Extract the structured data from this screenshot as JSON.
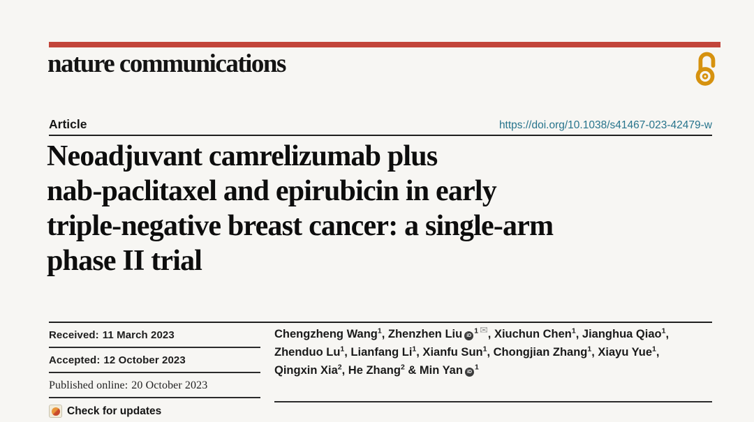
{
  "journal": {
    "name": "nature communications"
  },
  "header": {
    "article_label": "Article",
    "doi": "https://doi.org/10.1038/s41467-023-42479-w"
  },
  "title": {
    "lines": [
      "Neoadjuvant camrelizumab plus",
      "nab-paclitaxel and epirubicin in early",
      "triple-negative breast cancer: a single-arm",
      "phase II trial"
    ]
  },
  "dates": {
    "received": {
      "label": "Received:",
      "value": "11 March 2023"
    },
    "accepted": {
      "label": "Accepted:",
      "value": "12 October 2023"
    },
    "published": {
      "label": "Published online:",
      "value": "20 October 2023"
    }
  },
  "check_for_updates": {
    "label": "Check for updates"
  },
  "authors": {
    "lines": [
      [
        {
          "t": "Chengzheng Wang"
        },
        {
          "s": "1"
        },
        {
          "t": ", Zhenzhen Liu"
        },
        {
          "i": "orcid"
        },
        {
          "s": "1"
        },
        {
          "i": "mail"
        },
        {
          "t": ", Xiuchun Chen"
        },
        {
          "s": "1"
        },
        {
          "t": ", Jianghua Qiao"
        },
        {
          "s": "1"
        },
        {
          "t": ","
        }
      ],
      [
        {
          "t": "Zhenduo Lu"
        },
        {
          "s": "1"
        },
        {
          "t": ", Lianfang Li"
        },
        {
          "s": "1"
        },
        {
          "t": ", Xianfu Sun"
        },
        {
          "s": "1"
        },
        {
          "t": ", Chongjian Zhang"
        },
        {
          "s": "1"
        },
        {
          "t": ", Xiayu Yue"
        },
        {
          "s": "1"
        },
        {
          "t": ","
        }
      ],
      [
        {
          "t": "Qingxin Xia"
        },
        {
          "s": "2"
        },
        {
          "t": ", He Zhang"
        },
        {
          "s": "2"
        },
        {
          "t": " & Min Yan"
        },
        {
          "i": "orcid"
        },
        {
          "s": "1"
        }
      ]
    ]
  },
  "icons": {
    "open_access": "open-padlock",
    "orcid_glyph": "iD",
    "mail_glyph": "✉"
  },
  "colors": {
    "accent_red": "#c2453a",
    "oa_orange": "#d6920f",
    "doi_teal": "#27748c"
  }
}
